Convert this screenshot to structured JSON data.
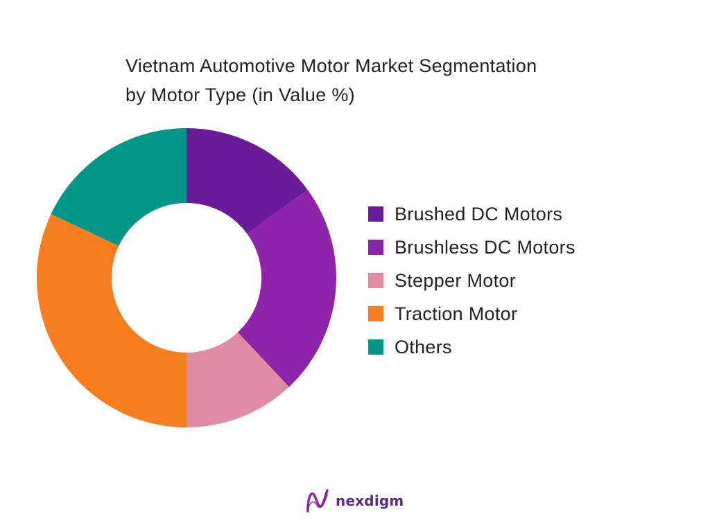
{
  "title_lines": [
    "Vietnam Automotive Motor Market Segmentation",
    "by Motor Type (in Value %)"
  ],
  "chart_data": {
    "type": "pie",
    "variant": "donut",
    "title": "Vietnam Automotive Motor Market Segmentation by Motor Type (in Value %)",
    "legend_position": "right",
    "categories": [
      "Brushed DC Motors",
      "Brushless DC Motors",
      "Stepper Motor",
      "Traction Motor",
      "Others"
    ],
    "values": [
      15,
      23,
      12,
      32,
      18
    ],
    "colors": [
      "#6a1b9a",
      "#8e24aa",
      "#e08aa3",
      "#f57f20",
      "#009688"
    ]
  },
  "brand": {
    "name": "nexdigm",
    "logo_icon": "nexdigm-logo-icon",
    "color": "#5b2a86"
  }
}
